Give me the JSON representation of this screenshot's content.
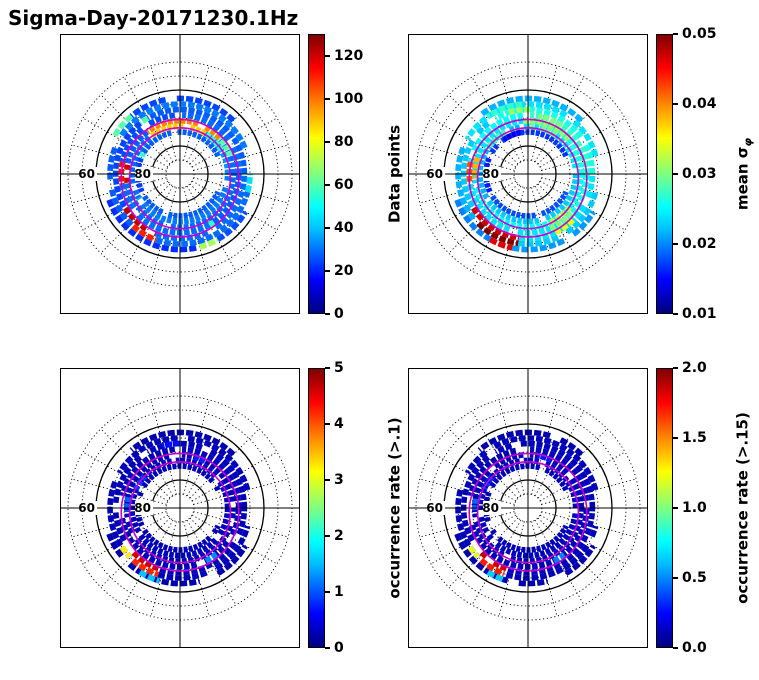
{
  "title": "Sigma-Day-20171230.1Hz",
  "style": {
    "oval_color": "#cc00cc",
    "grid_color": "#000000",
    "colormap_name": "jet"
  },
  "chart_data": [
    {
      "type": "heatmap",
      "projection": "polar",
      "colormap": "jet",
      "vmin": 0,
      "vmax": 130,
      "colorbar": {
        "label": "Data points",
        "label_sub": "",
        "tick_values": [
          0,
          20,
          40,
          60,
          80,
          100,
          120
        ],
        "tick_labels": [
          "0",
          "20",
          "40",
          "60",
          "80",
          "100",
          "120"
        ]
      },
      "lat_labels": [
        {
          "lat": 60,
          "text": "60"
        },
        {
          "lat": 80,
          "text": "80"
        }
      ],
      "grid": {
        "dotted_lats": [
          85,
          75,
          70,
          65,
          55,
          50
        ],
        "solid_lats": [
          80,
          60
        ],
        "spoke_step_deg": 15,
        "lat_min": 50
      },
      "oval_lats": [
        72,
        69
      ],
      "oval_offset_lat": 1.5,
      "cells": [
        [
          0,
          25,
          150,
          28
        ],
        [
          0,
          158,
          205,
          24
        ],
        [
          0,
          212,
          335,
          28
        ],
        [
          1,
          0,
          58,
          35
        ],
        [
          1,
          130,
          210,
          30
        ],
        [
          1,
          212,
          360,
          32
        ],
        [
          2,
          0,
          42,
          30
        ],
        [
          2,
          128,
          170,
          28
        ],
        [
          2,
          190,
          360,
          30
        ],
        [
          3,
          0,
          88,
          30
        ],
        [
          3,
          95,
          168,
          26
        ],
        [
          3,
          190,
          300,
          30
        ],
        [
          3,
          305,
          360,
          28
        ],
        [
          4,
          0,
          120,
          28
        ],
        [
          4,
          128,
          212,
          25
        ],
        [
          4,
          248,
          360,
          30
        ],
        [
          5,
          15,
          150,
          32
        ],
        [
          5,
          158,
          228,
          28
        ],
        [
          5,
          250,
          345,
          30
        ],
        [
          6,
          45,
          130,
          25
        ],
        [
          6,
          200,
          285,
          22
        ],
        [
          6,
          300,
          330,
          26
        ],
        [
          1,
          58,
          128,
          88
        ],
        [
          2,
          42,
          128,
          97
        ],
        [
          1,
          30,
          58,
          55
        ],
        [
          2,
          20,
          42,
          60
        ],
        [
          0,
          150,
          158,
          55
        ],
        [
          2,
          170,
          190,
          120
        ],
        [
          3,
          168,
          190,
          112
        ],
        [
          4,
          212,
          248,
          122
        ],
        [
          5,
          228,
          250,
          110
        ],
        [
          3,
          300,
          305,
          55
        ],
        [
          4,
          120,
          128,
          60
        ],
        [
          6,
          130,
          150,
          60
        ],
        [
          6,
          285,
          300,
          70
        ],
        [
          5,
          345,
          360,
          45
        ],
        [
          1,
          210,
          212,
          40
        ]
      ]
    },
    {
      "type": "heatmap",
      "projection": "polar",
      "colormap": "jet",
      "vmin": 0.01,
      "vmax": 0.05,
      "colorbar": {
        "label": "mean σ",
        "label_sub": "φ",
        "tick_values": [
          0.01,
          0.02,
          0.03,
          0.04,
          0.05
        ],
        "tick_labels": [
          "0.01",
          "0.02",
          "0.03",
          "0.04",
          "0.05"
        ]
      },
      "lat_labels": [
        {
          "lat": 60,
          "text": "60"
        },
        {
          "lat": 80,
          "text": "80"
        }
      ],
      "grid": {
        "dotted_lats": [
          85,
          75,
          70,
          65,
          55,
          50
        ],
        "solid_lats": [
          80,
          60
        ],
        "spoke_step_deg": 15,
        "lat_min": 50
      },
      "oval_lats": [
        72,
        69
      ],
      "oval_offset_lat": 1.5,
      "cells": [
        [
          0,
          25,
          150,
          0.017
        ],
        [
          0,
          158,
          205,
          0.016
        ],
        [
          0,
          212,
          335,
          0.018
        ],
        [
          1,
          0,
          95,
          0.024
        ],
        [
          1,
          100,
          210,
          0.022
        ],
        [
          1,
          215,
          360,
          0.023
        ],
        [
          2,
          0,
          88,
          0.026
        ],
        [
          2,
          95,
          190,
          0.024
        ],
        [
          2,
          195,
          360,
          0.025
        ],
        [
          3,
          0,
          88,
          0.027
        ],
        [
          3,
          95,
          168,
          0.025
        ],
        [
          3,
          190,
          300,
          0.024
        ],
        [
          3,
          305,
          360,
          0.026
        ],
        [
          4,
          0,
          120,
          0.026
        ],
        [
          4,
          128,
          212,
          0.023
        ],
        [
          4,
          262,
          360,
          0.024
        ],
        [
          5,
          15,
          150,
          0.024
        ],
        [
          5,
          158,
          225,
          0.022
        ],
        [
          5,
          262,
          345,
          0.023
        ],
        [
          6,
          45,
          130,
          0.022
        ],
        [
          6,
          200,
          240,
          0.02
        ],
        [
          6,
          258,
          330,
          0.021
        ],
        [
          2,
          40,
          95,
          0.031
        ],
        [
          1,
          55,
          90,
          0.029
        ],
        [
          3,
          55,
          80,
          0.03
        ],
        [
          2,
          288,
          322,
          0.032
        ],
        [
          3,
          292,
          318,
          0.03
        ],
        [
          4,
          295,
          315,
          0.034
        ],
        [
          2,
          162,
          185,
          0.038
        ],
        [
          3,
          168,
          188,
          0.042
        ],
        [
          4,
          212,
          262,
          0.047
        ],
        [
          5,
          225,
          262,
          0.05
        ],
        [
          6,
          240,
          258,
          0.046
        ],
        [
          1,
          118,
          148,
          0.028
        ],
        [
          4,
          88,
          108,
          0.031
        ],
        [
          0,
          100,
          125,
          0.014
        ],
        [
          5,
          95,
          125,
          0.027
        ]
      ]
    },
    {
      "type": "heatmap",
      "projection": "polar",
      "colormap": "jet",
      "vmin": 0,
      "vmax": 5,
      "colorbar": {
        "label": "occurrence rate (>.1)",
        "label_sub": "",
        "tick_values": [
          0,
          1,
          2,
          3,
          4,
          5
        ],
        "tick_labels": [
          "0",
          "1",
          "2",
          "3",
          "4",
          "5"
        ]
      },
      "lat_labels": [
        {
          "lat": 60,
          "text": "60"
        },
        {
          "lat": 80,
          "text": "80"
        }
      ],
      "grid": {
        "dotted_lats": [
          85,
          75,
          70,
          65,
          55,
          50
        ],
        "solid_lats": [
          80,
          60
        ],
        "spoke_step_deg": 15,
        "lat_min": 50
      },
      "oval_lats": [
        72,
        69
      ],
      "oval_offset_lat": 1.5,
      "cells": [
        [
          0,
          25,
          150,
          0.3
        ],
        [
          0,
          158,
          205,
          0.25
        ],
        [
          0,
          212,
          335,
          0.3
        ],
        [
          1,
          0,
          95,
          0.35
        ],
        [
          1,
          100,
          210,
          0.3
        ],
        [
          1,
          215,
          360,
          0.32
        ],
        [
          2,
          0,
          88,
          0.3
        ],
        [
          2,
          95,
          190,
          0.28
        ],
        [
          2,
          195,
          360,
          0.3
        ],
        [
          3,
          0,
          88,
          0.32
        ],
        [
          3,
          95,
          168,
          0.28
        ],
        [
          3,
          190,
          300,
          0.3
        ],
        [
          3,
          305,
          360,
          0.3
        ],
        [
          4,
          0,
          120,
          0.3
        ],
        [
          4,
          128,
          212,
          0.27
        ],
        [
          4,
          252,
          360,
          0.3
        ],
        [
          5,
          15,
          150,
          0.3
        ],
        [
          5,
          158,
          224,
          0.28
        ],
        [
          5,
          252,
          345,
          0.3
        ],
        [
          6,
          45,
          130,
          0.22
        ],
        [
          6,
          200,
          285,
          0.25
        ],
        [
          6,
          300,
          330,
          0.24
        ],
        [
          4,
          224,
          252,
          4.6
        ],
        [
          5,
          228,
          252,
          4.2
        ],
        [
          5,
          214,
          224,
          3.2
        ],
        [
          3,
          296,
          310,
          1.3
        ],
        [
          2,
          62,
          82,
          0.8
        ],
        [
          1,
          138,
          158,
          0.9
        ],
        [
          6,
          238,
          254,
          1.6
        ],
        [
          4,
          90,
          106,
          0.7
        ],
        [
          2,
          168,
          184,
          1.1
        ]
      ]
    },
    {
      "type": "heatmap",
      "projection": "polar",
      "colormap": "jet",
      "vmin": 0,
      "vmax": 2,
      "colorbar": {
        "label": "occurrence rate (>.15)",
        "label_sub": "",
        "tick_values": [
          0,
          0.5,
          1,
          1.5,
          2
        ],
        "tick_labels": [
          "0.0",
          "0.5",
          "1.0",
          "1.5",
          "2.0"
        ]
      },
      "lat_labels": [
        {
          "lat": 60,
          "text": "60"
        },
        {
          "lat": 80,
          "text": "80"
        }
      ],
      "grid": {
        "dotted_lats": [
          85,
          75,
          70,
          65,
          55,
          50
        ],
        "solid_lats": [
          80,
          60
        ],
        "spoke_step_deg": 15,
        "lat_min": 50
      },
      "oval_lats": [
        72,
        69
      ],
      "oval_offset_lat": 1.5,
      "cells": [
        [
          0,
          25,
          150,
          0.12
        ],
        [
          0,
          158,
          205,
          0.1
        ],
        [
          0,
          212,
          335,
          0.12
        ],
        [
          1,
          0,
          95,
          0.14
        ],
        [
          1,
          100,
          210,
          0.12
        ],
        [
          1,
          215,
          360,
          0.13
        ],
        [
          2,
          0,
          88,
          0.12
        ],
        [
          2,
          95,
          190,
          0.11
        ],
        [
          2,
          195,
          360,
          0.12
        ],
        [
          3,
          0,
          88,
          0.13
        ],
        [
          3,
          95,
          168,
          0.11
        ],
        [
          3,
          190,
          300,
          0.12
        ],
        [
          3,
          305,
          360,
          0.12
        ],
        [
          4,
          0,
          120,
          0.12
        ],
        [
          4,
          128,
          212,
          0.11
        ],
        [
          4,
          252,
          360,
          0.12
        ],
        [
          5,
          15,
          150,
          0.12
        ],
        [
          5,
          158,
          224,
          0.11
        ],
        [
          5,
          252,
          345,
          0.12
        ],
        [
          6,
          45,
          130,
          0.09
        ],
        [
          6,
          200,
          285,
          0.1
        ],
        [
          6,
          300,
          330,
          0.1
        ],
        [
          4,
          224,
          252,
          1.85
        ],
        [
          5,
          228,
          250,
          1.7
        ],
        [
          5,
          214,
          224,
          1.2
        ],
        [
          3,
          296,
          308,
          0.5
        ],
        [
          6,
          238,
          252,
          0.65
        ],
        [
          2,
          64,
          80,
          0.3
        ],
        [
          1,
          140,
          156,
          0.35
        ],
        [
          2,
          170,
          184,
          0.45
        ]
      ]
    }
  ]
}
